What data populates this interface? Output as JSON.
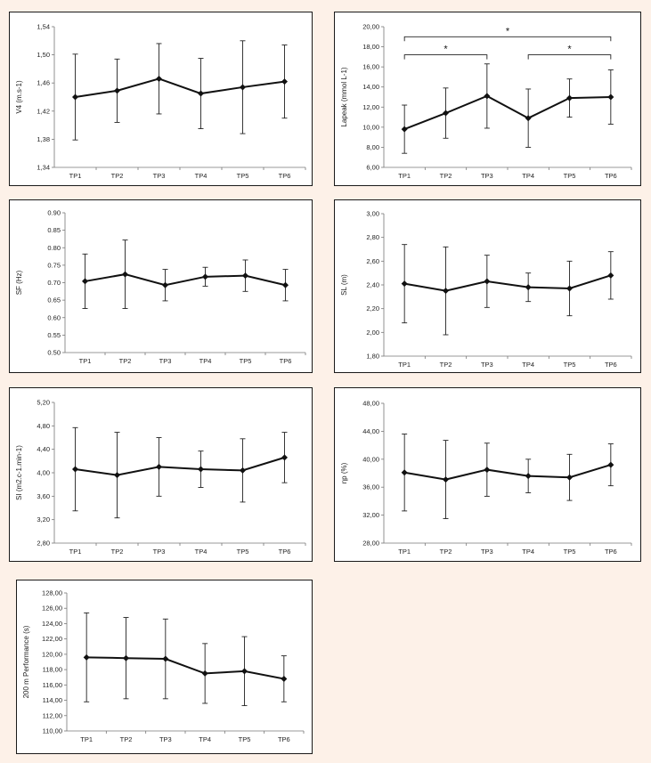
{
  "chart_data": [
    {
      "type": "line",
      "ylabel": "V4 (m.s-1)",
      "categories": [
        "TP1",
        "TP2",
        "TP3",
        "TP4",
        "TP5",
        "TP6"
      ],
      "series": [
        {
          "values": [
            1.44,
            1.449,
            1.466,
            1.445,
            1.454,
            1.462
          ],
          "error": [
            0.061,
            0.045,
            0.05,
            0.05,
            0.066,
            0.052
          ]
        }
      ],
      "ylim": [
        1.34,
        1.54
      ],
      "yticks": [
        "1,34",
        "1,38",
        "1,42",
        "1,46",
        "1,50",
        "1,54"
      ],
      "grid": false,
      "annotations": []
    },
    {
      "type": "line",
      "ylabel": "Lapeak (mmol L-1)",
      "categories": [
        "TP1",
        "TP2",
        "TP3",
        "TP4",
        "TP5",
        "TP6"
      ],
      "series": [
        {
          "values": [
            9.8,
            11.4,
            13.1,
            10.9,
            12.9,
            13.0
          ],
          "error": [
            2.4,
            2.5,
            3.2,
            2.9,
            1.9,
            2.7
          ]
        }
      ],
      "ylim": [
        6.0,
        20.0
      ],
      "yticks": [
        "6,00",
        "8,00",
        "10,00",
        "12,00",
        "14,00",
        "16,00",
        "18,00",
        "20,00"
      ],
      "grid": false,
      "annotations": [
        {
          "from": "TP1",
          "to": "TP3",
          "level": 17.2,
          "label": "*"
        },
        {
          "from": "TP4",
          "to": "TP6",
          "level": 17.2,
          "label": "*"
        },
        {
          "from": "TP1",
          "to": "TP6",
          "level": 19.0,
          "label": "*"
        }
      ]
    },
    {
      "type": "line",
      "ylabel": "SF (Hz)",
      "categories": [
        "TP1",
        "TP2",
        "TP3",
        "TP4",
        "TP5",
        "TP6"
      ],
      "series": [
        {
          "values": [
            0.704,
            0.724,
            0.693,
            0.717,
            0.72,
            0.693
          ],
          "error": [
            0.078,
            0.098,
            0.045,
            0.027,
            0.045,
            0.045
          ]
        }
      ],
      "ylim": [
        0.5,
        0.9
      ],
      "yticks": [
        "0.50",
        "0.55",
        "0.60",
        "0.65",
        "0.70",
        "0.75",
        "0.80",
        "0.85",
        "0.90"
      ],
      "grid": false,
      "annotations": []
    },
    {
      "type": "line",
      "ylabel": "SL (m)",
      "categories": [
        "TP1",
        "TP2",
        "TP3",
        "TP4",
        "TP5",
        "TP6"
      ],
      "series": [
        {
          "values": [
            2.41,
            2.35,
            2.43,
            2.38,
            2.37,
            2.48
          ],
          "error": [
            0.33,
            0.37,
            0.22,
            0.12,
            0.23,
            0.2
          ]
        }
      ],
      "ylim": [
        1.8,
        3.0
      ],
      "yticks": [
        "1,80",
        "2,00",
        "2,20",
        "2,40",
        "2,60",
        "2,80",
        "3,00"
      ],
      "grid": false,
      "annotations": []
    },
    {
      "type": "line",
      "ylabel": "SI (m2.c-1.min-1)",
      "categories": [
        "TP1",
        "TP2",
        "TP3",
        "TP4",
        "TP5",
        "TP6"
      ],
      "series": [
        {
          "values": [
            4.06,
            3.96,
            4.1,
            4.06,
            4.04,
            4.26
          ],
          "error": [
            0.71,
            0.73,
            0.5,
            0.31,
            0.54,
            0.43
          ]
        }
      ],
      "ylim": [
        2.8,
        5.2
      ],
      "yticks": [
        "2,80",
        "3,20",
        "3,60",
        "4,00",
        "4,40",
        "4,80",
        "5,20"
      ],
      "grid": false,
      "annotations": []
    },
    {
      "type": "line",
      "ylabel": "ηp (%)",
      "categories": [
        "TP1",
        "TP2",
        "TP3",
        "TP4",
        "TP5",
        "TP6"
      ],
      "series": [
        {
          "values": [
            38.1,
            37.1,
            38.5,
            37.6,
            37.4,
            39.2
          ],
          "error": [
            5.5,
            5.6,
            3.8,
            2.4,
            3.3,
            3.0
          ]
        }
      ],
      "ylim": [
        28.0,
        48.0
      ],
      "yticks": [
        "28,00",
        "32,00",
        "36,00",
        "40,00",
        "44,00",
        "48,00"
      ],
      "grid": false,
      "annotations": []
    },
    {
      "type": "line",
      "ylabel": "200 m Performance (s)",
      "categories": [
        "TP1",
        "TP2",
        "TP3",
        "TP4",
        "TP5",
        "TP6"
      ],
      "series": [
        {
          "values": [
            119.6,
            119.5,
            119.4,
            117.5,
            117.8,
            116.8
          ],
          "error": [
            5.8,
            5.3,
            5.2,
            3.9,
            4.5,
            3.0
          ]
        }
      ],
      "ylim": [
        110.0,
        128.0
      ],
      "yticks": [
        "110,00",
        "112,00",
        "114,00",
        "116,00",
        "118,00",
        "120,00",
        "122,00",
        "124,00",
        "126,00",
        "128,00"
      ],
      "grid": false,
      "annotations": []
    }
  ]
}
